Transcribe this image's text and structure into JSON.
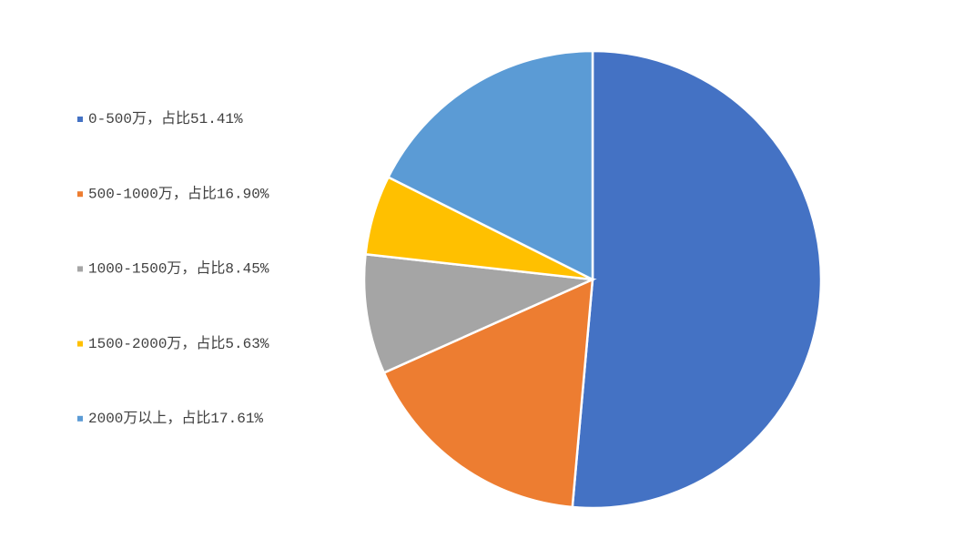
{
  "chart_data": {
    "type": "pie",
    "categories": [
      "0-500万，占比51.41%",
      "500-1000万，占比16.90%",
      "1000-1500万，占比8.45%",
      "1500-2000万，占比5.63%",
      "2000万以上，占比17.61%"
    ],
    "values": [
      51.41,
      16.9,
      8.45,
      5.63,
      17.61
    ],
    "colors": [
      "#4472c4",
      "#ed7d31",
      "#a5a5a5",
      "#ffc000",
      "#5b9bd5"
    ],
    "legend": "left"
  }
}
